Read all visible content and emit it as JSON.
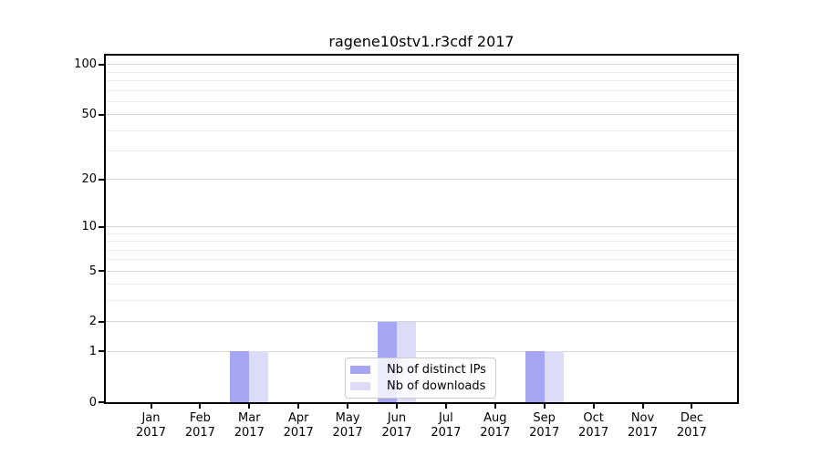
{
  "chart_data": {
    "type": "bar",
    "title": "ragene10stv1.r3cdf 2017",
    "categories": [
      "Jan",
      "Feb",
      "Mar",
      "Apr",
      "May",
      "Jun",
      "Jul",
      "Aug",
      "Sep",
      "Oct",
      "Nov",
      "Dec"
    ],
    "year_label": "2017",
    "series": [
      {
        "name": "Nb of distinct IPs",
        "color": "#a6a6f2",
        "values": [
          0,
          0,
          1,
          0,
          0,
          2,
          0,
          0,
          1,
          0,
          0,
          0
        ]
      },
      {
        "name": "Nb of downloads",
        "color": "#dcdcf9",
        "values": [
          0,
          0,
          1,
          0,
          0,
          2,
          0,
          0,
          1,
          0,
          0,
          0
        ]
      }
    ],
    "xlabel": "",
    "ylabel": "",
    "y_axis": {
      "scale": "log1p",
      "major_ticks": [
        0,
        1,
        2,
        5,
        10,
        20,
        50,
        100
      ],
      "minor_ticks": [
        3,
        4,
        6,
        7,
        8,
        9,
        30,
        40,
        60,
        70,
        80,
        90
      ],
      "ylim_top": 115
    },
    "grid": {
      "major_color": "#d4d4d4",
      "minor_color": "#ededed",
      "vertical_lines": false
    },
    "legend": {
      "position": "inside-bottom-center",
      "entries": [
        "Nb of distinct IPs",
        "Nb of downloads"
      ]
    },
    "axis_color": "#000000",
    "background_color": "#ffffff"
  }
}
